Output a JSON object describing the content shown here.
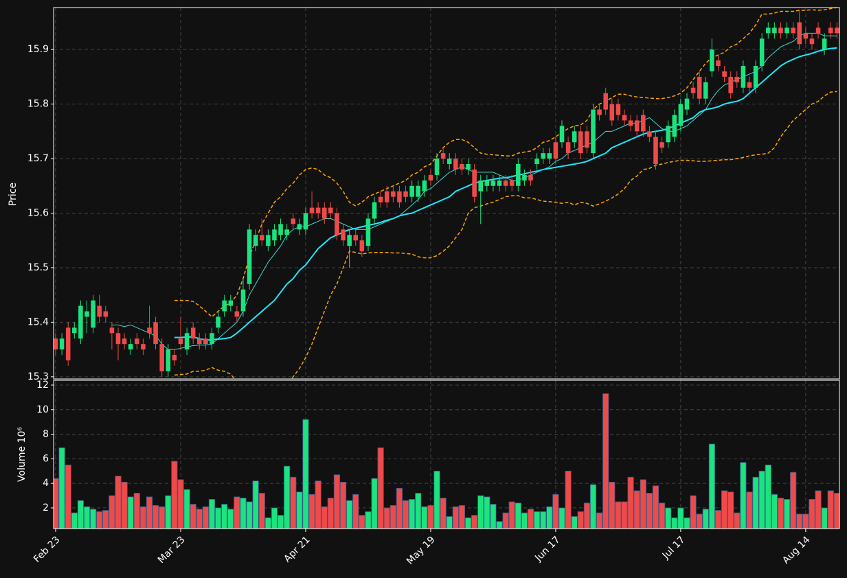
{
  "chart_data": {
    "type": "candlestick",
    "ylabel": "Price",
    "grid": true,
    "up_color": "#1be37f",
    "down_color": "#ef4a4a",
    "xlim": [
      -0.33,
      125.4
    ],
    "xticks": [
      {
        "value": 0,
        "label": "Feb 23"
      },
      {
        "value": 20,
        "label": "Mar 23"
      },
      {
        "value": 40,
        "label": "Apr 21"
      },
      {
        "value": 60,
        "label": "May 19"
      },
      {
        "value": 80,
        "label": "Jun 17"
      },
      {
        "value": 100,
        "label": "Jul 17"
      },
      {
        "value": 120,
        "label": "Aug 14"
      }
    ],
    "ylim": [
      15.296,
      15.977
    ],
    "yticks": [
      15.3,
      15.4,
      15.5,
      15.6,
      15.7,
      15.8,
      15.9
    ],
    "open": [
      15.37,
      15.35,
      15.39,
      15.38,
      15.37,
      15.41,
      15.39,
      15.43,
      15.42,
      15.39,
      15.38,
      15.37,
      15.35,
      15.37,
      15.36,
      15.39,
      15.4,
      15.36,
      15.31,
      15.34,
      15.37,
      15.35,
      15.39,
      15.37,
      15.37,
      15.36,
      15.39,
      15.42,
      15.43,
      15.42,
      15.42,
      15.47,
      15.54,
      15.56,
      15.54,
      15.55,
      15.56,
      15.56,
      15.59,
      15.57,
      15.57,
      15.61,
      15.61,
      15.61,
      15.61,
      15.6,
      15.57,
      15.54,
      15.56,
      15.55,
      15.54,
      15.59,
      15.63,
      15.64,
      15.64,
      15.64,
      15.64,
      15.63,
      15.63,
      15.64,
      15.67,
      15.67,
      15.71,
      15.69,
      15.7,
      15.69,
      15.68,
      15.68,
      15.64,
      15.65,
      15.65,
      15.65,
      15.66,
      15.66,
      15.65,
      15.66,
      15.67,
      15.69,
      15.7,
      15.7,
      15.73,
      15.73,
      15.73,
      15.73,
      15.75,
      15.75,
      15.71,
      15.79,
      15.82,
      15.8,
      15.8,
      15.78,
      15.77,
      15.77,
      15.78,
      15.75,
      15.74,
      15.73,
      15.73,
      15.74,
      15.76,
      15.79,
      15.83,
      15.85,
      15.81,
      15.86,
      15.88,
      15.86,
      15.85,
      15.85,
      15.83,
      15.84,
      15.83,
      15.87,
      15.93,
      15.93,
      15.94,
      15.93,
      15.94,
      15.95,
      15.93,
      15.92,
      15.94,
      15.9,
      15.94,
      15.94
    ],
    "high": [
      15.38,
      15.38,
      15.4,
      15.4,
      15.44,
      15.44,
      15.45,
      15.45,
      15.43,
      15.4,
      15.39,
      15.38,
      15.37,
      15.38,
      15.37,
      15.43,
      15.41,
      15.37,
      15.36,
      15.35,
      15.41,
      15.39,
      15.4,
      15.38,
      15.38,
      15.39,
      15.42,
      15.45,
      15.45,
      15.43,
      15.48,
      15.58,
      15.57,
      15.59,
      15.57,
      15.58,
      15.59,
      15.58,
      15.6,
      15.59,
      15.61,
      15.64,
      15.62,
      15.62,
      15.62,
      15.61,
      15.58,
      15.57,
      15.57,
      15.56,
      15.6,
      15.63,
      15.64,
      15.65,
      15.65,
      15.65,
      15.65,
      15.66,
      15.66,
      15.67,
      15.68,
      15.71,
      15.72,
      15.71,
      15.71,
      15.7,
      15.7,
      15.69,
      15.67,
      15.67,
      15.67,
      15.67,
      15.67,
      15.67,
      15.7,
      15.68,
      15.68,
      15.71,
      15.72,
      15.72,
      15.74,
      15.77,
      15.74,
      15.76,
      15.76,
      15.76,
      15.8,
      15.8,
      15.83,
      15.81,
      15.81,
      15.79,
      15.78,
      15.78,
      15.79,
      15.76,
      15.75,
      15.74,
      15.77,
      15.79,
      15.81,
      15.82,
      15.84,
      15.86,
      15.85,
      15.92,
      15.89,
      15.87,
      15.86,
      15.86,
      15.88,
      15.85,
      15.88,
      15.93,
      15.95,
      15.95,
      15.95,
      15.95,
      15.95,
      15.97,
      15.94,
      15.93,
      15.95,
      15.93,
      15.95,
      15.95
    ],
    "low": [
      15.34,
      15.34,
      15.32,
      15.37,
      15.36,
      15.38,
      15.38,
      15.4,
      15.4,
      15.35,
      15.33,
      15.35,
      15.34,
      15.35,
      15.34,
      15.37,
      15.35,
      15.3,
      15.3,
      15.32,
      15.35,
      15.34,
      15.36,
      15.35,
      15.35,
      15.35,
      15.38,
      15.41,
      15.42,
      15.4,
      15.41,
      15.46,
      15.53,
      15.54,
      15.53,
      15.54,
      15.55,
      15.55,
      15.57,
      15.56,
      15.56,
      15.59,
      15.59,
      15.58,
      15.59,
      15.55,
      15.54,
      15.5,
      15.54,
      15.52,
      15.53,
      15.58,
      15.61,
      15.61,
      15.62,
      15.61,
      15.62,
      15.62,
      15.62,
      15.63,
      15.65,
      15.66,
      15.69,
      15.68,
      15.67,
      15.67,
      15.67,
      15.62,
      15.58,
      15.64,
      15.64,
      15.64,
      15.64,
      15.64,
      15.64,
      15.65,
      15.65,
      15.68,
      15.69,
      15.69,
      15.69,
      15.72,
      15.7,
      15.72,
      15.7,
      15.71,
      15.7,
      15.77,
      15.78,
      15.76,
      15.77,
      15.76,
      15.75,
      15.74,
      15.74,
      15.73,
      15.68,
      15.71,
      15.72,
      15.73,
      15.75,
      15.78,
      15.81,
      15.8,
      15.8,
      15.85,
      15.86,
      15.84,
      15.81,
      15.83,
      15.82,
      15.82,
      15.82,
      15.86,
      15.92,
      15.92,
      15.92,
      15.92,
      15.92,
      15.9,
      15.91,
      15.9,
      15.92,
      15.89,
      15.92,
      15.92
    ],
    "close": [
      15.35,
      15.37,
      15.33,
      15.39,
      15.43,
      15.42,
      15.44,
      15.41,
      15.41,
      15.38,
      15.36,
      15.36,
      15.36,
      15.36,
      15.35,
      15.38,
      15.36,
      15.31,
      15.35,
      15.33,
      15.36,
      15.38,
      15.37,
      15.36,
      15.36,
      15.38,
      15.41,
      15.44,
      15.44,
      15.41,
      15.46,
      15.57,
      15.56,
      15.55,
      15.56,
      15.57,
      15.58,
      15.57,
      15.58,
      15.58,
      15.6,
      15.6,
      15.6,
      15.59,
      15.6,
      15.56,
      15.55,
      15.56,
      15.55,
      15.53,
      15.59,
      15.62,
      15.62,
      15.62,
      15.63,
      15.62,
      15.63,
      15.65,
      15.65,
      15.66,
      15.66,
      15.7,
      15.7,
      15.7,
      15.68,
      15.68,
      15.69,
      15.63,
      15.66,
      15.66,
      15.66,
      15.66,
      15.65,
      15.65,
      15.69,
      15.67,
      15.66,
      15.7,
      15.71,
      15.71,
      15.7,
      15.76,
      15.71,
      15.75,
      15.71,
      15.72,
      15.79,
      15.78,
      15.79,
      15.77,
      15.78,
      15.77,
      15.76,
      15.75,
      15.75,
      15.74,
      15.69,
      15.72,
      15.76,
      15.78,
      15.8,
      15.81,
      15.82,
      15.81,
      15.84,
      15.9,
      15.87,
      15.85,
      15.82,
      15.84,
      15.87,
      15.83,
      15.87,
      15.92,
      15.94,
      15.94,
      15.93,
      15.94,
      15.93,
      15.91,
      15.92,
      15.91,
      15.93,
      15.92,
      15.93,
      15.93
    ],
    "overlays": [
      {
        "color": "#3fd9d0",
        "width": 1,
        "dash": false,
        "values": [
          null,
          null,
          null,
          null,
          null,
          null,
          null,
          null,
          null,
          15.395,
          15.395,
          15.392,
          15.395,
          15.39,
          15.385,
          15.38,
          15.375,
          15.36,
          15.35,
          15.35,
          15.352,
          15.355,
          15.357,
          15.358,
          15.358,
          15.36,
          15.37,
          15.38,
          15.39,
          15.4,
          15.42,
          15.45,
          15.47,
          15.49,
          15.51,
          15.525,
          15.54,
          15.56,
          15.57,
          15.575,
          15.575,
          15.58,
          15.585,
          15.59,
          15.59,
          15.585,
          15.58,
          15.575,
          15.57,
          15.57,
          15.57,
          15.575,
          15.58,
          15.585,
          15.59,
          15.595,
          15.605,
          15.615,
          15.625,
          15.64,
          15.645,
          15.655,
          15.665,
          15.675,
          15.68,
          15.685,
          15.68,
          15.675,
          15.675,
          15.675,
          15.675,
          15.67,
          15.665,
          15.66,
          15.66,
          15.665,
          15.67,
          15.675,
          15.68,
          15.685,
          15.695,
          15.7,
          15.71,
          15.715,
          15.72,
          15.725,
          15.73,
          15.74,
          15.75,
          15.75,
          15.755,
          15.76,
          15.765,
          15.765,
          15.77,
          15.775,
          15.765,
          15.755,
          15.75,
          15.75,
          15.755,
          15.76,
          15.77,
          15.78,
          15.79,
          15.81,
          15.825,
          15.835,
          15.84,
          15.845,
          15.85,
          15.855,
          15.86,
          15.87,
          15.885,
          15.895,
          15.905,
          15.91,
          15.915,
          15.925,
          15.93,
          15.93,
          15.93,
          15.925,
          15.925,
          15.925
        ]
      },
      {
        "color": "#1ee8ff",
        "width": 2,
        "dash": false,
        "values": [
          null,
          null,
          null,
          null,
          null,
          null,
          null,
          null,
          null,
          null,
          null,
          null,
          null,
          null,
          null,
          null,
          null,
          null,
          null,
          15.372,
          15.372,
          15.373,
          15.373,
          15.37,
          15.367,
          15.368,
          15.369,
          15.37,
          15.372,
          15.38,
          15.39,
          15.4,
          15.41,
          15.42,
          15.43,
          15.44,
          15.455,
          15.47,
          15.48,
          15.495,
          15.505,
          15.52,
          15.535,
          15.545,
          15.555,
          15.56,
          15.565,
          15.57,
          15.572,
          15.575,
          15.578,
          15.58,
          15.583,
          15.587,
          15.59,
          15.595,
          15.598,
          15.6,
          15.605,
          15.61,
          15.615,
          15.62,
          15.625,
          15.63,
          15.64,
          15.645,
          15.65,
          15.655,
          15.658,
          15.66,
          15.662,
          15.664,
          15.665,
          15.667,
          15.67,
          15.672,
          15.675,
          15.677,
          15.68,
          15.682,
          15.684,
          15.686,
          15.688,
          15.69,
          15.692,
          15.695,
          15.7,
          15.705,
          15.71,
          15.72,
          15.725,
          15.73,
          15.735,
          15.74,
          15.745,
          15.748,
          15.75,
          15.752,
          15.755,
          15.76,
          15.765,
          15.77,
          15.775,
          15.785,
          15.79,
          15.792,
          15.795,
          15.8,
          15.803,
          15.805,
          15.81,
          15.82,
          15.83,
          15.84,
          15.85,
          15.86,
          15.87,
          15.877,
          15.882,
          15.887,
          15.89,
          15.893,
          15.897,
          15.9,
          15.902,
          15.903
        ]
      },
      {
        "color": "#ffa500",
        "width": 1.5,
        "dash": true,
        "values": [
          null,
          null,
          null,
          null,
          null,
          null,
          null,
          null,
          null,
          null,
          null,
          null,
          null,
          null,
          null,
          null,
          null,
          null,
          null,
          15.44,
          15.44,
          15.44,
          15.438,
          15.43,
          15.42,
          15.41,
          15.42,
          15.43,
          15.435,
          15.45,
          15.48,
          15.52,
          15.55,
          15.58,
          15.6,
          15.62,
          15.63,
          15.645,
          15.655,
          15.67,
          15.68,
          15.683,
          15.68,
          15.67,
          15.665,
          15.655,
          15.64,
          15.62,
          15.613,
          15.62,
          15.63,
          15.635,
          15.64,
          15.645,
          15.65,
          15.655,
          15.66,
          15.67,
          15.675,
          15.685,
          15.69,
          15.705,
          15.72,
          15.73,
          15.735,
          15.735,
          15.73,
          15.72,
          15.71,
          15.708,
          15.707,
          15.706,
          15.705,
          15.705,
          15.71,
          15.712,
          15.714,
          15.72,
          15.73,
          15.733,
          15.74,
          15.748,
          15.755,
          15.76,
          15.762,
          15.77,
          15.79,
          15.8,
          15.805,
          15.812,
          15.818,
          15.818,
          15.815,
          15.813,
          15.812,
          15.811,
          15.81,
          15.81,
          15.812,
          15.815,
          15.82,
          15.83,
          15.845,
          15.86,
          15.875,
          15.885,
          15.89,
          15.895,
          15.905,
          15.91,
          15.92,
          15.93,
          15.945,
          15.965,
          15.965,
          15.967,
          15.97,
          15.97,
          15.97,
          15.972,
          15.972,
          15.973,
          15.972,
          15.973,
          15.975,
          15.977
        ]
      },
      {
        "color": "#ffa500",
        "width": 1.5,
        "dash": true,
        "values": [
          null,
          null,
          null,
          null,
          null,
          null,
          null,
          null,
          null,
          null,
          null,
          null,
          null,
          null,
          null,
          null,
          null,
          null,
          null,
          15.303,
          15.304,
          15.305,
          15.31,
          15.31,
          15.312,
          15.317,
          15.312,
          15.31,
          15.305,
          15.29,
          15.26,
          15.23,
          15.21,
          15.2,
          15.21,
          15.23,
          15.25,
          15.28,
          15.3,
          15.315,
          15.335,
          15.36,
          15.39,
          15.42,
          15.45,
          15.47,
          15.5,
          15.53,
          15.528,
          15.525,
          15.527,
          15.528,
          15.528,
          15.528,
          15.527,
          15.527,
          15.526,
          15.525,
          15.52,
          15.518,
          15.518,
          15.522,
          15.53,
          15.54,
          15.555,
          15.57,
          15.6,
          15.61,
          15.613,
          15.617,
          15.62,
          15.625,
          15.63,
          15.632,
          15.632,
          15.628,
          15.628,
          15.625,
          15.622,
          15.621,
          15.62,
          15.618,
          15.62,
          15.615,
          15.62,
          15.618,
          15.613,
          15.617,
          15.622,
          15.628,
          15.635,
          15.645,
          15.66,
          15.668,
          15.68,
          15.682,
          15.688,
          15.69,
          15.693,
          15.695,
          15.697,
          15.697,
          15.696,
          15.695,
          15.695,
          15.696,
          15.697,
          15.698,
          15.698,
          15.7,
          15.702,
          15.705,
          15.707,
          15.708,
          15.71,
          15.72,
          15.74,
          15.755,
          15.77,
          15.78,
          15.79,
          15.8,
          15.805,
          15.815,
          15.822,
          15.823
        ]
      }
    ],
    "volume": {
      "ylabel": "Volume  10⁶",
      "ylim": [
        0.32,
        12.39
      ],
      "yticks": [
        2,
        4,
        6,
        8,
        10,
        12
      ],
      "values": [
        4.4,
        6.9,
        5.5,
        1.6,
        2.6,
        2.1,
        1.9,
        1.7,
        1.8,
        3.0,
        4.6,
        4.1,
        2.9,
        3.2,
        2.1,
        2.9,
        2.2,
        2.1,
        3.0,
        5.8,
        4.3,
        3.5,
        2.3,
        1.9,
        2.1,
        2.7,
        2.0,
        2.3,
        1.9,
        2.9,
        2.8,
        2.5,
        4.2,
        3.2,
        1.2,
        2.0,
        1.4,
        5.4,
        4.5,
        3.3,
        9.2,
        3.1,
        4.2,
        2.1,
        2.8,
        4.7,
        4.1,
        2.6,
        3.1,
        1.4,
        1.7,
        4.4,
        6.9,
        2.0,
        2.2,
        3.6,
        2.6,
        2.7,
        3.2,
        2.1,
        2.2,
        5.0,
        2.8,
        1.3,
        2.1,
        2.2,
        1.2,
        1.4,
        3.0,
        2.9,
        2.3,
        0.9,
        1.6,
        2.5,
        2.4,
        1.6,
        1.9,
        1.7,
        1.7,
        2.1,
        3.1,
        2.0,
        5.0,
        1.3,
        1.7,
        2.4,
        3.9,
        1.6,
        11.3,
        4.1,
        2.5,
        2.5,
        4.5,
        3.4,
        4.3,
        3.2,
        3.8,
        2.4,
        2.0,
        1.2,
        2.0,
        1.2,
        3.0,
        1.5,
        1.9,
        7.2,
        1.8,
        3.4,
        3.3,
        1.6,
        5.7,
        3.3,
        4.5,
        5.0,
        5.5,
        3.1,
        2.8,
        2.7,
        4.9,
        1.5,
        1.5,
        2.7,
        3.4,
        2.0,
        3.4,
        3.2
      ]
    }
  }
}
